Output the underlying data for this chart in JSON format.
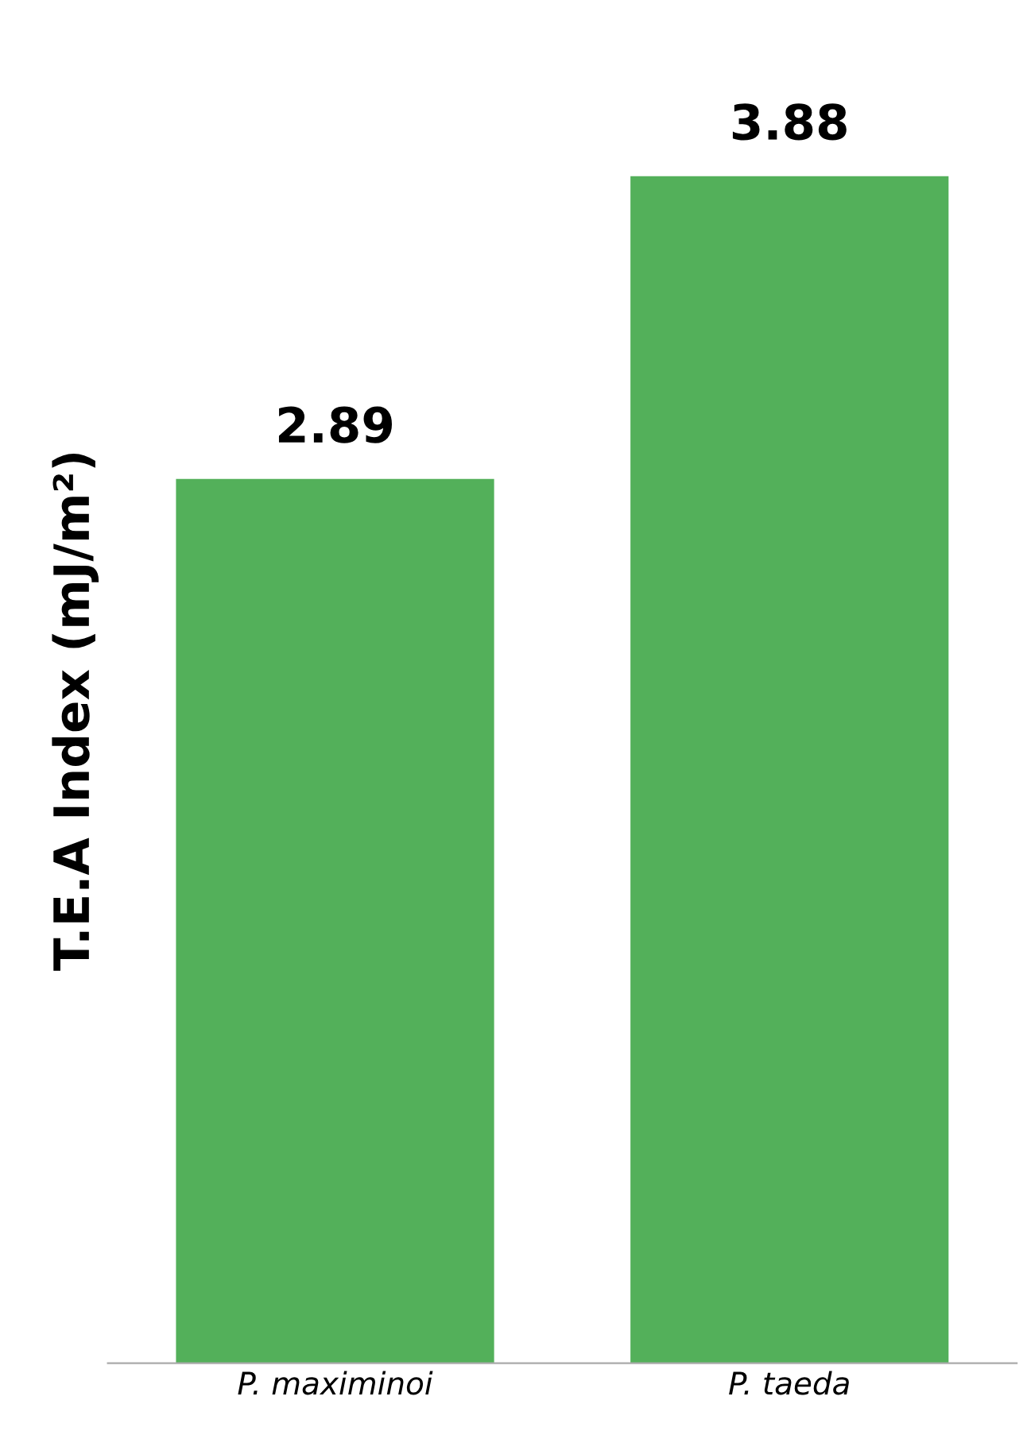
{
  "chart_data": {
    "type": "bar",
    "ylabel": "T.E.A Index (mJ/m²)",
    "categories": [
      "P. maximinoi",
      "P. taeda"
    ],
    "values": [
      2.89,
      3.88
    ],
    "colors": [
      "#53b05a",
      "#53b05a"
    ],
    "data_labels": true,
    "grid": false,
    "legend": false
  }
}
